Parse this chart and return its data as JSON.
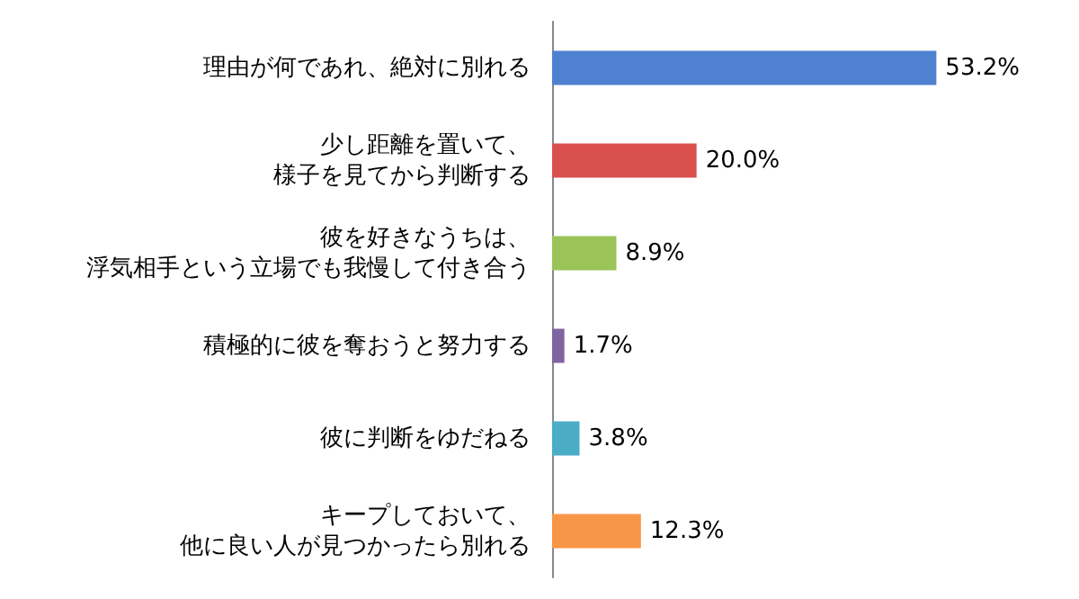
{
  "chart_data": {
    "type": "bar",
    "orientation": "horizontal",
    "categories": [
      "理由が何であれ、絶対に別れる",
      "少し距離を置いて、様子を見てから判断する",
      "彼を好きなうちは、浮気相手という立場でも我慢して付き合う",
      "積極的に彼を奪おうと努力する",
      "彼に判断をゆだねる",
      "キープしておいて、他に良い人が見つかったら別れる"
    ],
    "values": [
      53.2,
      20.0,
      8.9,
      1.7,
      3.8,
      12.3
    ],
    "value_labels": [
      "53.2%",
      "20.0%",
      "8.9%",
      "1.7%",
      "3.8%",
      "12.3%"
    ],
    "colors": [
      "#4f81d0",
      "#d9504f",
      "#9bc458",
      "#8064a2",
      "#4bacc6",
      "#f79646"
    ]
  }
}
